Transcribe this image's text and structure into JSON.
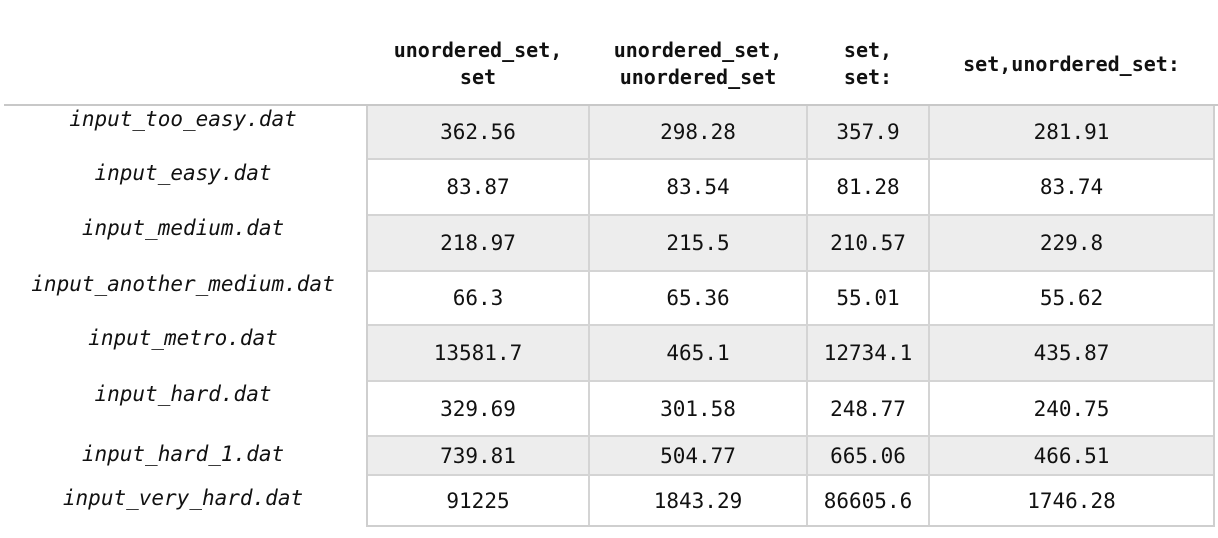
{
  "table": {
    "columns": [
      "unordered_set,\nset",
      "unordered_set,\nunordered_set",
      "set,\nset:",
      "set,unordered_set:"
    ],
    "rows": [
      {
        "label": "input_too_easy.dat",
        "values": [
          "362.56",
          "298.28",
          "357.9",
          "281.91"
        ]
      },
      {
        "label": "input_easy.dat",
        "values": [
          "83.87",
          "83.54",
          "81.28",
          "83.74"
        ]
      },
      {
        "label": "input_medium.dat",
        "values": [
          "218.97",
          "215.5",
          "210.57",
          "229.8"
        ]
      },
      {
        "label": "input_another_medium.dat",
        "values": [
          "66.3",
          "65.36",
          "55.01",
          "55.62"
        ]
      },
      {
        "label": "input_metro.dat",
        "values": [
          "13581.7",
          "465.1",
          "12734.1",
          "435.87"
        ]
      },
      {
        "label": "input_hard.dat",
        "values": [
          "329.69",
          "301.58",
          "248.77",
          "240.75"
        ]
      },
      {
        "label": "input_hard_1.dat",
        "values": [
          "739.81",
          "504.77",
          "665.06",
          "466.51"
        ]
      },
      {
        "label": "input_very_hard.dat",
        "values": [
          "91225",
          "1843.29",
          "86605.6",
          "1746.28"
        ]
      }
    ]
  }
}
